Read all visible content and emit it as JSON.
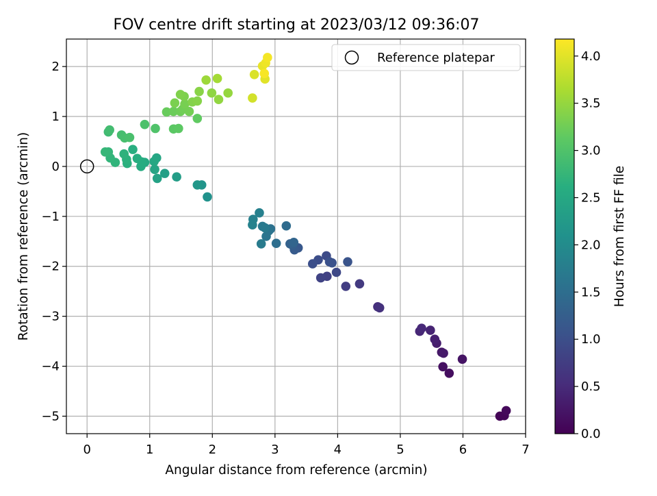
{
  "chart_data": {
    "type": "scatter",
    "title": "FOV centre drift starting at 2023/03/12 09:36:07",
    "xlabel": "Angular distance from reference (arcmin)",
    "ylabel": "Rotation from reference (arcmin)",
    "xlim": [
      -0.33,
      7.0
    ],
    "ylim": [
      -5.35,
      2.55
    ],
    "xticks": [
      0,
      1,
      2,
      3,
      4,
      5,
      6,
      7
    ],
    "yticks": [
      -5,
      -4,
      -3,
      -2,
      -1,
      0,
      1,
      2
    ],
    "xtick_labels": [
      "0",
      "1",
      "2",
      "3",
      "4",
      "5",
      "6",
      "7"
    ],
    "ytick_labels": [
      "−5",
      "−4",
      "−3",
      "−2",
      "−1",
      "0",
      "1",
      "2"
    ],
    "grid": true,
    "legend": {
      "position": "top-right",
      "entries": [
        {
          "label": "Reference platepar",
          "marker": "open-circle"
        }
      ]
    },
    "reference_point": {
      "x": 0,
      "y": 0
    },
    "colormap": "viridis",
    "colorbar": {
      "label": "Hours from first FF file",
      "range": [
        0,
        4.18
      ],
      "ticks": [
        0.0,
        0.5,
        1.0,
        1.5,
        2.0,
        2.5,
        3.0,
        3.5,
        4.0
      ],
      "tick_labels": [
        "0.0",
        "0.5",
        "1.0",
        "1.5",
        "2.0",
        "2.5",
        "3.0",
        "3.5",
        "4.0"
      ]
    },
    "points": [
      [
        6.59,
        -5.0,
        0.03
      ],
      [
        6.66,
        -4.99,
        0.06
      ],
      [
        6.69,
        -4.89,
        0.1
      ],
      [
        5.78,
        -4.14,
        0.15
      ],
      [
        5.68,
        -4.01,
        0.18
      ],
      [
        5.99,
        -3.86,
        0.22
      ],
      [
        5.66,
        -3.72,
        0.26
      ],
      [
        5.69,
        -3.74,
        0.3
      ],
      [
        5.58,
        -3.54,
        0.33
      ],
      [
        5.55,
        -3.46,
        0.37
      ],
      [
        5.48,
        -3.28,
        0.41
      ],
      [
        5.31,
        -3.3,
        0.45
      ],
      [
        5.34,
        -3.24,
        0.48
      ],
      [
        4.64,
        -2.81,
        0.55
      ],
      [
        4.67,
        -2.83,
        0.6
      ],
      [
        4.35,
        -2.35,
        0.7
      ],
      [
        4.13,
        -2.4,
        0.75
      ],
      [
        3.83,
        -2.2,
        0.8
      ],
      [
        3.73,
        -2.23,
        0.83
      ],
      [
        3.98,
        -2.12,
        0.9
      ],
      [
        3.82,
        -1.79,
        0.95
      ],
      [
        3.69,
        -1.87,
        0.98
      ],
      [
        3.6,
        -1.95,
        1.0
      ],
      [
        3.87,
        -1.91,
        1.03
      ],
      [
        3.91,
        -1.93,
        1.05
      ],
      [
        4.16,
        -1.91,
        1.07
      ],
      [
        3.37,
        -1.63,
        1.15
      ],
      [
        3.31,
        -1.67,
        1.2
      ],
      [
        3.28,
        -1.58,
        1.25
      ],
      [
        3.24,
        -1.55,
        1.3
      ],
      [
        3.3,
        -1.52,
        1.35
      ],
      [
        3.18,
        -1.19,
        1.45
      ],
      [
        3.02,
        -1.54,
        1.5
      ],
      [
        2.93,
        -1.25,
        1.55
      ],
      [
        2.9,
        -1.29,
        1.6
      ],
      [
        2.86,
        -1.4,
        1.62
      ],
      [
        2.8,
        -1.2,
        1.68
      ],
      [
        2.84,
        -1.23,
        1.7
      ],
      [
        2.78,
        -1.55,
        1.72
      ],
      [
        2.75,
        -0.93,
        1.8
      ],
      [
        2.65,
        -1.06,
        1.82
      ],
      [
        2.64,
        -1.17,
        1.84
      ],
      [
        1.92,
        -0.61,
        2.1
      ],
      [
        1.83,
        -0.37,
        2.15
      ],
      [
        1.76,
        -0.37,
        2.2
      ],
      [
        1.43,
        -0.21,
        2.3
      ],
      [
        1.24,
        -0.14,
        2.35
      ],
      [
        1.12,
        -0.24,
        2.4
      ],
      [
        1.08,
        -0.06,
        2.43
      ],
      [
        1.11,
        0.17,
        2.46
      ],
      [
        1.07,
        0.1,
        2.48
      ],
      [
        0.92,
        0.08,
        2.52
      ],
      [
        0.86,
        0.0,
        2.55
      ],
      [
        0.87,
        0.09,
        2.57
      ],
      [
        0.8,
        0.16,
        2.6
      ],
      [
        0.73,
        0.34,
        2.62
      ],
      [
        0.64,
        0.06,
        2.64
      ],
      [
        0.63,
        0.14,
        2.66
      ],
      [
        0.59,
        0.25,
        2.68
      ],
      [
        0.45,
        0.08,
        2.7
      ],
      [
        0.37,
        0.17,
        2.72
      ],
      [
        0.34,
        0.29,
        2.74
      ],
      [
        0.29,
        0.29,
        2.76
      ],
      [
        0.34,
        0.69,
        2.85
      ],
      [
        0.36,
        0.73,
        2.88
      ],
      [
        0.55,
        0.63,
        2.9
      ],
      [
        0.6,
        0.57,
        2.92
      ],
      [
        0.68,
        0.58,
        2.94
      ],
      [
        0.92,
        0.84,
        2.97
      ],
      [
        1.09,
        0.76,
        3.0
      ],
      [
        1.38,
        0.75,
        3.1
      ],
      [
        1.46,
        0.76,
        3.12
      ],
      [
        1.76,
        0.96,
        3.15
      ],
      [
        1.27,
        1.09,
        3.2
      ],
      [
        1.38,
        1.1,
        3.22
      ],
      [
        1.49,
        1.1,
        3.24
      ],
      [
        1.53,
        1.15,
        3.26
      ],
      [
        1.63,
        1.1,
        3.28
      ],
      [
        1.56,
        1.25,
        3.3
      ],
      [
        1.4,
        1.27,
        3.32
      ],
      [
        1.55,
        1.4,
        3.34
      ],
      [
        1.49,
        1.44,
        3.36
      ],
      [
        1.68,
        1.29,
        3.38
      ],
      [
        1.76,
        1.31,
        3.4
      ],
      [
        1.79,
        1.5,
        3.42
      ],
      [
        1.99,
        1.47,
        3.46
      ],
      [
        2.1,
        1.34,
        3.48
      ],
      [
        2.25,
        1.47,
        3.5
      ],
      [
        1.9,
        1.73,
        3.55
      ],
      [
        2.08,
        1.76,
        3.6
      ],
      [
        2.64,
        1.37,
        3.9
      ],
      [
        2.67,
        1.84,
        3.95
      ],
      [
        2.84,
        1.75,
        4.0
      ],
      [
        2.8,
        2.01,
        4.04
      ],
      [
        2.85,
        2.07,
        4.08
      ],
      [
        2.88,
        2.18,
        4.12
      ],
      [
        2.83,
        1.86,
        4.14
      ]
    ]
  }
}
